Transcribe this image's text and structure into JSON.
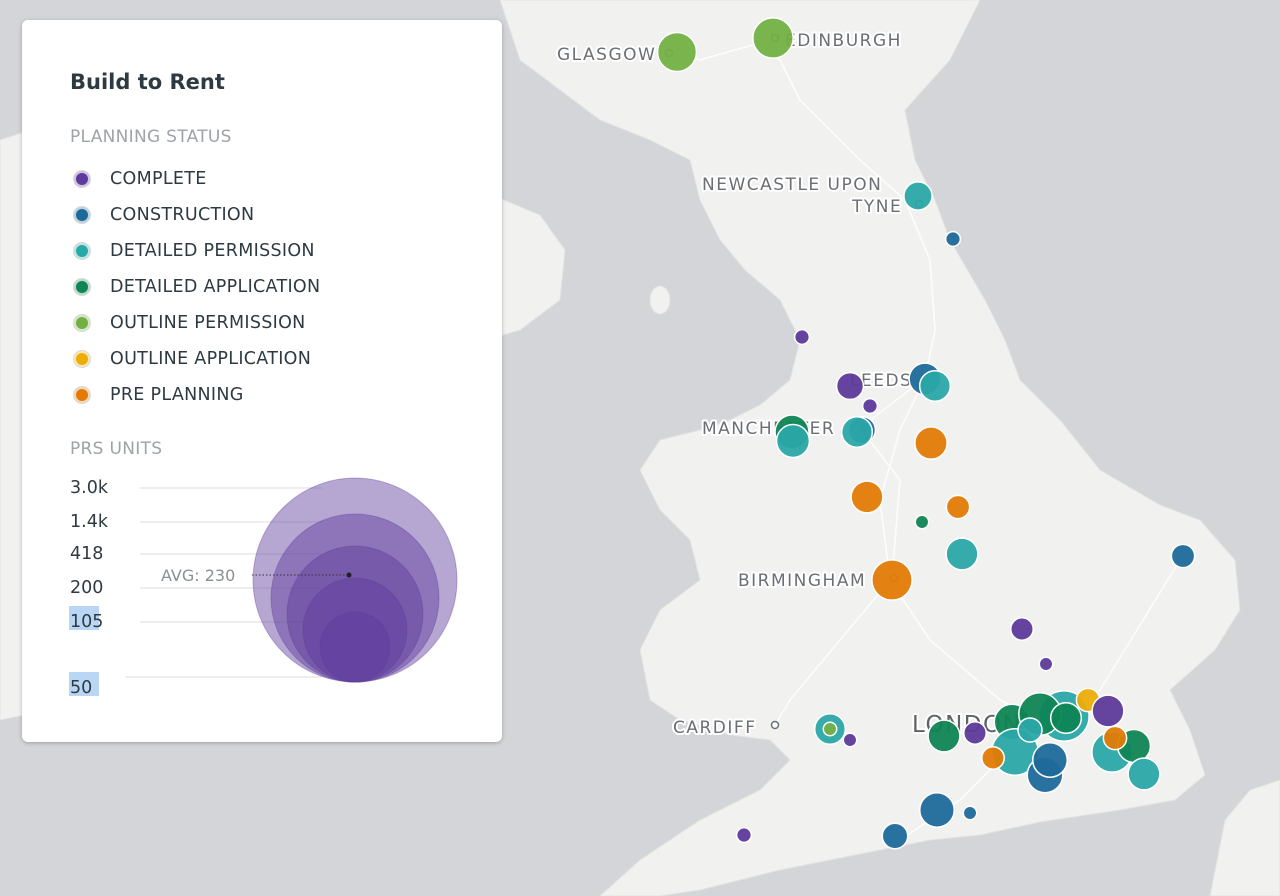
{
  "panel": {
    "title": "Build to Rent",
    "status_label": "PLANNING STATUS",
    "units_label": "PRS UNITS"
  },
  "statuses": [
    {
      "key": "complete",
      "label": "COMPLETE",
      "color": "#5d3a9b"
    },
    {
      "key": "construction",
      "label": "CONSTRUCTION",
      "color": "#1d6a9a"
    },
    {
      "key": "detailed_permission",
      "label": "DETAILED PERMISSION",
      "color": "#2aa7a7"
    },
    {
      "key": "detailed_application",
      "label": "DETAILED APPLICATION",
      "color": "#0f8555"
    },
    {
      "key": "outline_permission",
      "label": "OUTLINE PERMISSION",
      "color": "#72b043"
    },
    {
      "key": "outline_application",
      "label": "OUTLINE APPLICATION",
      "color": "#edad08"
    },
    {
      "key": "pre_planning",
      "label": "PRE PLANNING",
      "color": "#e17b05"
    }
  ],
  "size_legend": {
    "ticks": [
      "3.0k",
      "1.4k",
      "418",
      "200",
      "105",
      "50"
    ],
    "highlighted_ticks": [
      "105",
      "50"
    ],
    "avg_label": "AVG: 230",
    "bubble_color": "#5d3a9b"
  },
  "cities": [
    {
      "name": "GLASGOW",
      "big": false
    },
    {
      "name": "EDINBURGH",
      "big": false
    },
    {
      "name": "NEWCASTLE UPON",
      "big": false
    },
    {
      "name": "TYNE",
      "big": false
    },
    {
      "name": "LEEDS",
      "big": false
    },
    {
      "name": "MANCHESTER",
      "big": false
    },
    {
      "name": "BIRMINGHAM",
      "big": false
    },
    {
      "name": "CARDIFF",
      "big": false
    },
    {
      "name": "LONDON",
      "big": true
    }
  ],
  "sites": [
    {
      "status": "outline_permission",
      "units": 420
    },
    {
      "status": "outline_permission",
      "units": 450
    },
    {
      "status": "detailed_permission",
      "units": 220
    },
    {
      "status": "construction",
      "units": 60
    },
    {
      "status": "complete",
      "units": 60
    },
    {
      "status": "construction",
      "units": 280
    },
    {
      "status": "detailed_permission",
      "units": 260
    },
    {
      "status": "complete",
      "units": 200
    },
    {
      "status": "complete",
      "units": 60
    },
    {
      "status": "complete",
      "units": 60
    },
    {
      "status": "detailed_application",
      "units": 320
    },
    {
      "status": "detailed_permission",
      "units": 300
    },
    {
      "status": "construction",
      "units": 200
    },
    {
      "status": "detailed_permission",
      "units": 260
    },
    {
      "status": "pre_planning",
      "units": 290
    },
    {
      "status": "pre_planning",
      "units": 280
    },
    {
      "status": "detailed_application",
      "units": 50
    },
    {
      "status": "pre_planning",
      "units": 150
    },
    {
      "status": "detailed_permission",
      "units": 280
    },
    {
      "status": "construction",
      "units": 150
    },
    {
      "status": "pre_planning",
      "units": 450
    },
    {
      "status": "complete",
      "units": 140
    },
    {
      "status": "complete",
      "units": 50
    },
    {
      "status": "detailed_permission",
      "units": 260
    },
    {
      "status": "outline_permission",
      "units": 50
    },
    {
      "status": "complete",
      "units": 50
    },
    {
      "status": "detailed_application",
      "units": 280
    },
    {
      "status": "complete",
      "units": 140
    },
    {
      "status": "detailed_application",
      "units": 350
    },
    {
      "status": "detailed_permission",
      "units": 600
    },
    {
      "status": "detailed_permission",
      "units": 700
    },
    {
      "status": "construction",
      "units": 350
    },
    {
      "status": "construction",
      "units": 330
    },
    {
      "status": "detailed_application",
      "units": 500
    },
    {
      "status": "detailed_permission",
      "units": 450
    },
    {
      "status": "detailed_application",
      "units": 300
    },
    {
      "status": "outline_application",
      "units": 150
    },
    {
      "status": "complete",
      "units": 280
    },
    {
      "status": "detailed_permission",
      "units": 280
    },
    {
      "status": "detailed_application",
      "units": 260
    },
    {
      "status": "pre_planning",
      "units": 150
    },
    {
      "status": "detailed_permission",
      "units": 160
    },
    {
      "status": "construction",
      "units": 330
    },
    {
      "status": "construction",
      "units": 50
    },
    {
      "status": "construction",
      "units": 180
    },
    {
      "status": "complete",
      "units": 60
    },
    {
      "status": "pre_planning",
      "units": 140
    }
  ]
}
